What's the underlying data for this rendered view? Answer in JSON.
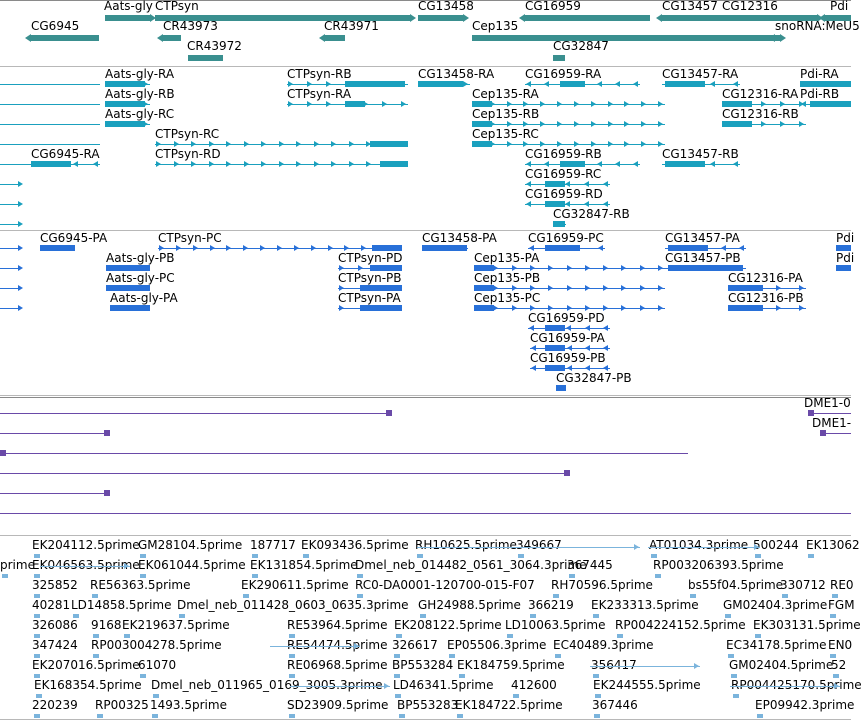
{
  "colors": {
    "gene": "#3a8f8f",
    "transcript_rna": "#1aa0be",
    "protein": "#2870d8",
    "alignment": "#6a4aa8",
    "est": "#7bb4dc",
    "separator": "#b8b8b8"
  },
  "genes": {
    "features": [
      {
        "label": "Aats-gly",
        "strand": "+"
      },
      {
        "label": "CTPsyn",
        "strand": "+"
      },
      {
        "label": "CG13458",
        "strand": "+"
      },
      {
        "label": "CG16959",
        "strand": "-"
      },
      {
        "label": "CG13457",
        "strand": "-"
      },
      {
        "label": "CG12316",
        "strand": "+"
      },
      {
        "label": "Pdi",
        "strand": "-"
      },
      {
        "label": "CG6945",
        "strand": "-"
      },
      {
        "label": "CR43973",
        "strand": "-"
      },
      {
        "label": "CR43971",
        "strand": "-"
      },
      {
        "label": "Cep135",
        "strand": "+"
      },
      {
        "label": "snoRNA:MeU5",
        "strand": "-"
      },
      {
        "label": "CR43972",
        "strand": ""
      },
      {
        "label": "CG32847",
        "strand": ""
      }
    ]
  },
  "transcripts": {
    "features": [
      {
        "label": "Aats-gly-RA"
      },
      {
        "label": "CTPsyn-RB"
      },
      {
        "label": "CG13458-RA"
      },
      {
        "label": "CG16959-RA"
      },
      {
        "label": "CG13457-RA"
      },
      {
        "label": "Pdi-RA"
      },
      {
        "label": "Aats-gly-RB"
      },
      {
        "label": "CTPsyn-RA"
      },
      {
        "label": "Cep135-RA"
      },
      {
        "label": "CG12316-RA"
      },
      {
        "label": "Pdi-RB"
      },
      {
        "label": "Aats-gly-RC"
      },
      {
        "label": "Cep135-RB"
      },
      {
        "label": "CG12316-RB"
      },
      {
        "label": "CTPsyn-RC"
      },
      {
        "label": "Cep135-RC"
      },
      {
        "label": "CG6945-RA"
      },
      {
        "label": "CTPsyn-RD"
      },
      {
        "label": "CG16959-RB"
      },
      {
        "label": "CG13457-RB"
      },
      {
        "label": "CG16959-RC"
      },
      {
        "label": "CG16959-RD"
      },
      {
        "label": "CG32847-RB"
      }
    ]
  },
  "proteins": {
    "features": [
      {
        "label": "CG6945-PA"
      },
      {
        "label": "CTPsyn-PC"
      },
      {
        "label": "CG13458-PA"
      },
      {
        "label": "CG16959-PC"
      },
      {
        "label": "CG13457-PA"
      },
      {
        "label": "Pdi"
      },
      {
        "label": "Aats-gly-PB"
      },
      {
        "label": "CTPsyn-PD"
      },
      {
        "label": "Cep135-PA"
      },
      {
        "label": "CG13457-PB"
      },
      {
        "label": "Pdi"
      },
      {
        "label": "Aats-gly-PC"
      },
      {
        "label": "CTPsyn-PB"
      },
      {
        "label": "Cep135-PB"
      },
      {
        "label": "CG12316-PA"
      },
      {
        "label": "Aats-gly-PA"
      },
      {
        "label": "CTPsyn-PA"
      },
      {
        "label": "Cep135-PC"
      },
      {
        "label": "CG12316-PB"
      },
      {
        "label": "CG16959-PD"
      },
      {
        "label": "CG16959-PA"
      },
      {
        "label": "CG16959-PB"
      },
      {
        "label": "CG32847-PB"
      }
    ]
  },
  "alignments": {
    "features": [
      {
        "label": "DME1-0"
      },
      {
        "label": "DME1-"
      }
    ]
  },
  "ests": {
    "features": [
      {
        "label": "EK204112.5prime"
      },
      {
        "label": "GM28104.5prime"
      },
      {
        "label": "187717"
      },
      {
        "label": "EK093436.5prime"
      },
      {
        "label": "RH10625.5prime"
      },
      {
        "label": "349667"
      },
      {
        "label": "AT01034.3prime"
      },
      {
        "label": "500244"
      },
      {
        "label": "EK13062"
      },
      {
        "label": "prime"
      },
      {
        "label": "EK046563.5prime"
      },
      {
        "label": "EK061044.5prime"
      },
      {
        "label": "EK131854.5prime"
      },
      {
        "label": "Dmel_neb_014482_0561_3064.3prime"
      },
      {
        "label": "367445"
      },
      {
        "label": "RP003206393.5prime"
      },
      {
        "label": "325852"
      },
      {
        "label": "RE56363.5prime"
      },
      {
        "label": "EK290611.5prime"
      },
      {
        "label": "RC0-DA0001-120700-015-F07"
      },
      {
        "label": "RH70596.5prime"
      },
      {
        "label": "bs55f04.5prime"
      },
      {
        "label": "330712"
      },
      {
        "label": "RE0"
      },
      {
        "label": "40281"
      },
      {
        "label": "LD14858.5prime"
      },
      {
        "label": "Dmel_neb_011428_0603_0635.3prime"
      },
      {
        "label": "GH24988.5prime"
      },
      {
        "label": "366219"
      },
      {
        "label": "EK233313.5prime"
      },
      {
        "label": "GM02404.3prime"
      },
      {
        "label": "FGM"
      },
      {
        "label": "326086"
      },
      {
        "label": "9168"
      },
      {
        "label": "EK219637.5prime"
      },
      {
        "label": "RE53964.5prime"
      },
      {
        "label": "EK208122.5prime"
      },
      {
        "label": "LD10063.5prime"
      },
      {
        "label": "RP004224152.5prime"
      },
      {
        "label": "EK303131.5prime"
      },
      {
        "label": "347424"
      },
      {
        "label": "RP003004278.5prime"
      },
      {
        "label": "RE54474.5prime"
      },
      {
        "label": "326617"
      },
      {
        "label": "EP05506.3prime"
      },
      {
        "label": "EC40489.3prime"
      },
      {
        "label": "EC34178.5prime"
      },
      {
        "label": "EN0"
      },
      {
        "label": "EK207016.5prime"
      },
      {
        "label": "61070"
      },
      {
        "label": "RE06968.5prime"
      },
      {
        "label": "BP553284"
      },
      {
        "label": "EK184759.5prime"
      },
      {
        "label": "356417"
      },
      {
        "label": "GM02404.5prime"
      },
      {
        "label": "52"
      },
      {
        "label": "EK168354.5prime"
      },
      {
        "label": "Dmel_neb_011965_0169_3005.3prime"
      },
      {
        "label": "LD46341.5prime"
      },
      {
        "label": "412600"
      },
      {
        "label": "EK244555.5prime"
      },
      {
        "label": "RP004425170.5prime"
      },
      {
        "label": "220239"
      },
      {
        "label": "RP00325"
      },
      {
        "label": "1493.5prime"
      },
      {
        "label": "SD23909.5prime"
      },
      {
        "label": "BP553283"
      },
      {
        "label": "EK184722.5prime"
      },
      {
        "label": "367446"
      },
      {
        "label": "EP09942.3prime"
      }
    ]
  }
}
